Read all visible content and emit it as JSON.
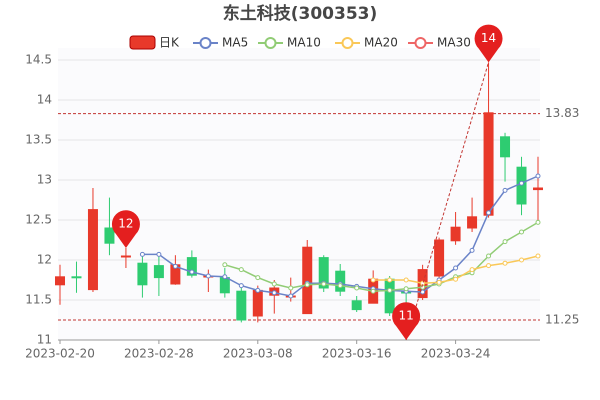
{
  "chart_data": {
    "type": "candlestick",
    "title": "东土科技(300353)",
    "categories": [
      "2023-02-20",
      null,
      null,
      null,
      null,
      null,
      "2023-02-28",
      null,
      null,
      null,
      null,
      null,
      "2023-03-08",
      null,
      null,
      null,
      null,
      null,
      "2023-03-16",
      null,
      null,
      null,
      null,
      null,
      "2023-03-24",
      null,
      null,
      null,
      null,
      null
    ],
    "candles": {
      "name": "日K",
      "up_color": "#e8392a",
      "down_color": "#2ecc71",
      "open": [
        11.69,
        11.79,
        11.63,
        12.4,
        12.04,
        11.96,
        11.93,
        11.7,
        12.03,
        11.8,
        11.78,
        11.61,
        11.3,
        11.56,
        11.55,
        11.33,
        12.03,
        11.86,
        11.49,
        11.46,
        11.76,
        11.6,
        11.53,
        11.8,
        12.24,
        12.4,
        12.56,
        13.54,
        13.16,
        12.88
      ],
      "close": [
        11.79,
        11.78,
        12.63,
        12.21,
        12.05,
        11.69,
        11.78,
        11.94,
        11.81,
        11.8,
        11.59,
        11.25,
        11.62,
        11.65,
        11.55,
        12.16,
        11.65,
        11.61,
        11.38,
        11.76,
        11.34,
        11.59,
        11.88,
        12.25,
        12.41,
        12.54,
        13.84,
        13.29,
        12.7,
        12.9
      ],
      "high": [
        11.94,
        11.98,
        12.9,
        12.78,
        12.15,
        12.06,
        12.06,
        12.06,
        12.12,
        11.88,
        11.9,
        11.65,
        11.68,
        11.75,
        11.78,
        12.25,
        12.06,
        11.95,
        11.55,
        11.87,
        11.8,
        11.63,
        11.94,
        12.28,
        12.6,
        12.78,
        14.47,
        13.59,
        13.29,
        13.29
      ],
      "low": [
        11.44,
        11.59,
        11.6,
        12.06,
        11.9,
        11.53,
        11.55,
        11.69,
        11.78,
        11.6,
        11.53,
        11.22,
        11.22,
        11.33,
        11.48,
        11.33,
        11.6,
        11.55,
        11.35,
        11.46,
        11.3,
        11.0,
        11.5,
        11.78,
        12.19,
        12.35,
        12.53,
        12.98,
        12.56,
        12.48
      ]
    },
    "series": [
      {
        "name": "MA5",
        "color": "#6a83c8",
        "values": [
          null,
          null,
          null,
          null,
          null,
          12.07,
          12.07,
          11.92,
          11.85,
          11.8,
          11.79,
          11.68,
          11.62,
          11.59,
          11.55,
          11.71,
          11.71,
          11.7,
          11.67,
          11.64,
          11.62,
          11.61,
          11.6,
          11.75,
          11.9,
          12.12,
          12.59,
          12.87,
          12.96,
          13.05
        ]
      },
      {
        "name": "MA10",
        "color": "#91cc75",
        "values": [
          null,
          null,
          null,
          null,
          null,
          null,
          null,
          null,
          null,
          null,
          11.94,
          11.88,
          11.78,
          11.7,
          11.65,
          11.69,
          11.7,
          11.68,
          11.65,
          11.61,
          11.62,
          11.64,
          11.66,
          11.7,
          11.79,
          11.84,
          12.05,
          12.23,
          12.35,
          12.47
        ]
      },
      {
        "name": "MA20",
        "color": "#fac858",
        "values": [
          null,
          null,
          null,
          null,
          null,
          null,
          null,
          null,
          null,
          null,
          null,
          null,
          null,
          null,
          null,
          null,
          null,
          null,
          null,
          11.75,
          11.75,
          11.75,
          11.71,
          11.72,
          11.76,
          11.88,
          11.93,
          11.96,
          12.0,
          12.05
        ]
      },
      {
        "name": "MA30",
        "color": "#ee6666",
        "values": [
          null,
          null,
          null,
          null,
          null,
          null,
          null,
          null,
          null,
          null,
          null,
          null,
          null,
          null,
          null,
          null,
          null,
          null,
          null,
          null,
          null,
          null,
          null,
          null,
          null,
          null,
          null,
          null,
          null,
          null
        ]
      }
    ],
    "ylim": [
      11,
      14.5
    ],
    "yticks": [
      11,
      11.5,
      12,
      12.5,
      13,
      13.5,
      14,
      14.5
    ],
    "grid": true,
    "ref_lines": [
      13.83,
      11.25
    ],
    "markers": [
      {
        "label": "12",
        "index": 4,
        "value": 12.15
      },
      {
        "label": "11",
        "index": 21,
        "value": 11.0
      },
      {
        "label": "14",
        "index": 26,
        "value": 14.47
      }
    ]
  }
}
